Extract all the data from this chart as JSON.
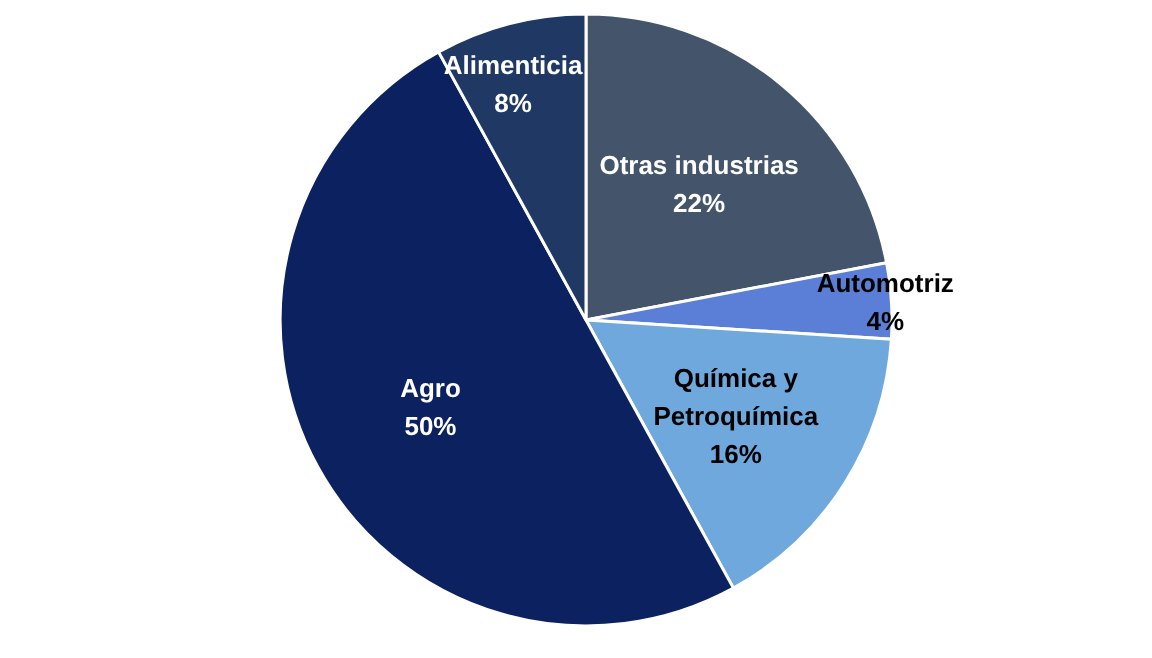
{
  "chart_data": {
    "type": "pie",
    "categories": [
      "Otras industrias",
      "Automotriz",
      "Química y Petroquímica",
      "Agro",
      "Alimenticia"
    ],
    "values": [
      22,
      4,
      16,
      50,
      8
    ],
    "value_labels": [
      "22%",
      "4%",
      "16%",
      "50%",
      "8%"
    ],
    "colors": [
      "#44546a",
      "#5b7fd6",
      "#6fa8dc",
      "#0c2160",
      "#1f3864"
    ]
  }
}
